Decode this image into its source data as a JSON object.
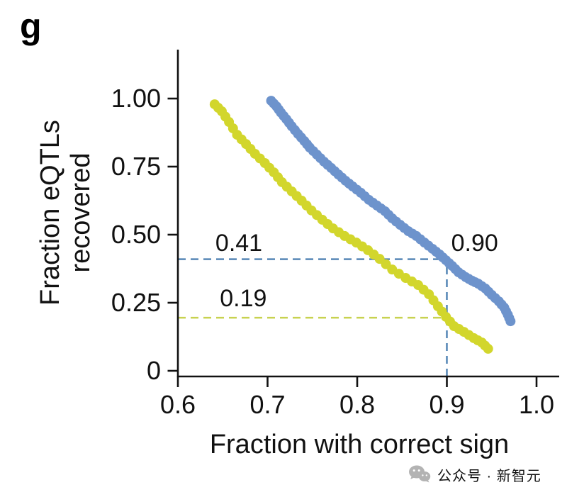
{
  "panel_label": "g",
  "chart_data": {
    "type": "scatter",
    "title": "",
    "xlabel": "Fraction with correct sign",
    "ylabel_line1": "Fraction eQTLs",
    "ylabel_line2": "recovered",
    "xlim": [
      0.6,
      1.0
    ],
    "ylim": [
      0,
      1.0
    ],
    "grid": false,
    "legend": "none",
    "x_ticks": [
      {
        "value": 0.6,
        "label": "0.6"
      },
      {
        "value": 0.7,
        "label": "0.7"
      },
      {
        "value": 0.8,
        "label": "0.8"
      },
      {
        "value": 0.9,
        "label": "0.9"
      },
      {
        "value": 1.0,
        "label": "1.0"
      }
    ],
    "y_ticks": [
      {
        "value": 1.0,
        "label": "1.00"
      },
      {
        "value": 0.75,
        "label": "0.75"
      },
      {
        "value": 0.5,
        "label": "0.50"
      },
      {
        "value": 0.25,
        "label": "0.25"
      },
      {
        "value": 0,
        "label": "0"
      }
    ],
    "series": [
      {
        "name": "blue-series",
        "color": "#6d93cc",
        "points": [
          [
            0.704,
            0.992
          ],
          [
            0.71,
            0.971
          ],
          [
            0.715,
            0.948
          ],
          [
            0.721,
            0.924
          ],
          [
            0.727,
            0.898
          ],
          [
            0.734,
            0.87
          ],
          [
            0.741,
            0.844
          ],
          [
            0.747,
            0.82
          ],
          [
            0.755,
            0.794
          ],
          [
            0.763,
            0.768
          ],
          [
            0.771,
            0.745
          ],
          [
            0.779,
            0.721
          ],
          [
            0.787,
            0.698
          ],
          [
            0.795,
            0.677
          ],
          [
            0.804,
            0.654
          ],
          [
            0.813,
            0.628
          ],
          [
            0.822,
            0.607
          ],
          [
            0.831,
            0.586
          ],
          [
            0.839,
            0.56
          ],
          [
            0.848,
            0.536
          ],
          [
            0.857,
            0.513
          ],
          [
            0.866,
            0.495
          ],
          [
            0.875,
            0.471
          ],
          [
            0.884,
            0.448
          ],
          [
            0.892,
            0.427
          ],
          [
            0.899,
            0.406
          ],
          [
            0.906,
            0.385
          ],
          [
            0.913,
            0.362
          ],
          [
            0.921,
            0.344
          ],
          [
            0.928,
            0.331
          ],
          [
            0.935,
            0.32
          ],
          [
            0.943,
            0.302
          ],
          [
            0.95,
            0.279
          ],
          [
            0.958,
            0.255
          ],
          [
            0.964,
            0.232
          ],
          [
            0.968,
            0.206
          ],
          [
            0.971,
            0.182
          ]
        ]
      },
      {
        "name": "yellow-series",
        "color": "#d2d62c",
        "points": [
          [
            0.641,
            0.979
          ],
          [
            0.649,
            0.953
          ],
          [
            0.657,
            0.914
          ],
          [
            0.666,
            0.867
          ],
          [
            0.676,
            0.833
          ],
          [
            0.686,
            0.797
          ],
          [
            0.697,
            0.763
          ],
          [
            0.707,
            0.729
          ],
          [
            0.716,
            0.693
          ],
          [
            0.727,
            0.659
          ],
          [
            0.738,
            0.625
          ],
          [
            0.749,
            0.589
          ],
          [
            0.761,
            0.555
          ],
          [
            0.773,
            0.523
          ],
          [
            0.786,
            0.495
          ],
          [
            0.799,
            0.471
          ],
          [
            0.812,
            0.443
          ],
          [
            0.825,
            0.411
          ],
          [
            0.839,
            0.372
          ],
          [
            0.854,
            0.341
          ],
          [
            0.868,
            0.315
          ],
          [
            0.88,
            0.281
          ],
          [
            0.89,
            0.237
          ],
          [
            0.899,
            0.198
          ],
          [
            0.908,
            0.164
          ],
          [
            0.919,
            0.143
          ],
          [
            0.93,
            0.12
          ],
          [
            0.939,
            0.104
          ],
          [
            0.946,
            0.081
          ]
        ]
      }
    ],
    "reference_lines": [
      {
        "name": "blue-horizontal-dashed",
        "orientation": "horizontal",
        "y": 0.41,
        "x0": 0.6,
        "x1": 0.9,
        "color": "#4d80b2"
      },
      {
        "name": "yellow-horizontal-dashed",
        "orientation": "horizontal",
        "y": 0.195,
        "x0": 0.6,
        "x1": 0.9,
        "color": "#c8d250"
      },
      {
        "name": "blue-vertical-dashed",
        "orientation": "vertical",
        "x": 0.9,
        "y0": 0,
        "y1": 0.41,
        "color": "#4d80b2"
      }
    ],
    "annotations": [
      {
        "text": "0.41",
        "x": 0.668,
        "y": 0.471
      },
      {
        "text": "0.19",
        "x": 0.673,
        "y": 0.268
      },
      {
        "text": "0.90",
        "x": 0.931,
        "y": 0.471
      }
    ]
  },
  "watermark": {
    "icon": "wechat-icon",
    "text": "公众号 · 新智元",
    "color": "#b6b6b6"
  }
}
